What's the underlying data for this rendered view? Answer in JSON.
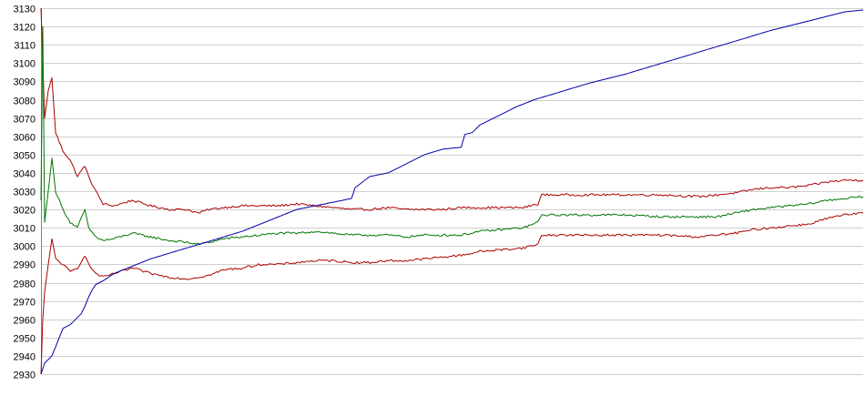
{
  "chart_data": {
    "type": "line",
    "title": "",
    "xlabel": "",
    "ylabel": "",
    "grid": "horizontal",
    "legend": "none",
    "ylim": [
      2930,
      3130
    ],
    "yticks": [
      "3130",
      "3120",
      "3110",
      "3100",
      "3090",
      "3080",
      "3070",
      "3060",
      "3050",
      "3040",
      "3030",
      "3020",
      "3010",
      "3000",
      "2990",
      "2980",
      "2970",
      "2960",
      "2950",
      "2940",
      "2930"
    ],
    "xlim": [
      0,
      225
    ],
    "series": [
      {
        "role": "upper",
        "color": "#aa0000",
        "points": [
          [
            0,
            3130
          ],
          [
            1,
            3070
          ],
          [
            2,
            3085
          ],
          [
            3,
            3092
          ],
          [
            4,
            3062
          ],
          [
            6,
            3052
          ],
          [
            8,
            3047
          ],
          [
            10,
            3038
          ],
          [
            12,
            3044
          ],
          [
            13,
            3038
          ],
          [
            15,
            3030
          ],
          [
            17,
            3023
          ],
          [
            20,
            3022
          ],
          [
            25,
            3025
          ],
          [
            30,
            3022
          ],
          [
            35,
            3020
          ],
          [
            40,
            3020
          ],
          [
            43,
            3018
          ],
          [
            46,
            3020
          ],
          [
            50,
            3021
          ],
          [
            55,
            3022
          ],
          [
            60,
            3022
          ],
          [
            65,
            3022
          ],
          [
            70,
            3023
          ],
          [
            75,
            3022
          ],
          [
            80,
            3021
          ],
          [
            85,
            3020
          ],
          [
            90,
            3020
          ],
          [
            95,
            3021
          ],
          [
            100,
            3020
          ],
          [
            105,
            3020
          ],
          [
            110,
            3020
          ],
          [
            115,
            3021
          ],
          [
            120,
            3021
          ],
          [
            132,
            3021
          ],
          [
            136,
            3023
          ],
          [
            137,
            3028
          ],
          [
            140,
            3028
          ],
          [
            150,
            3028
          ],
          [
            160,
            3028
          ],
          [
            170,
            3028
          ],
          [
            180,
            3027
          ],
          [
            185,
            3028
          ],
          [
            190,
            3029
          ],
          [
            195,
            3031
          ],
          [
            200,
            3032
          ],
          [
            205,
            3032
          ],
          [
            210,
            3033
          ],
          [
            215,
            3035
          ],
          [
            220,
            3036
          ],
          [
            225,
            3036
          ]
        ]
      },
      {
        "role": "middle",
        "color": "#007700",
        "points": [
          [
            0,
            3025
          ],
          [
            0.5,
            3120
          ],
          [
            1,
            3013
          ],
          [
            2,
            3030
          ],
          [
            3,
            3048
          ],
          [
            4,
            3030
          ],
          [
            6,
            3020
          ],
          [
            8,
            3013
          ],
          [
            10,
            3010
          ],
          [
            12,
            3020
          ],
          [
            13,
            3010
          ],
          [
            15,
            3005
          ],
          [
            17,
            3003
          ],
          [
            20,
            3004
          ],
          [
            25,
            3007
          ],
          [
            30,
            3005
          ],
          [
            35,
            3003
          ],
          [
            40,
            3002
          ],
          [
            43,
            3001
          ],
          [
            46,
            3002
          ],
          [
            50,
            3004
          ],
          [
            55,
            3005
          ],
          [
            60,
            3006
          ],
          [
            65,
            3007
          ],
          [
            70,
            3007
          ],
          [
            75,
            3008
          ],
          [
            80,
            3007
          ],
          [
            85,
            3006
          ],
          [
            90,
            3006
          ],
          [
            95,
            3006
          ],
          [
            100,
            3005
          ],
          [
            105,
            3006
          ],
          [
            110,
            3006
          ],
          [
            115,
            3006
          ],
          [
            120,
            3008
          ],
          [
            132,
            3010
          ],
          [
            136,
            3013
          ],
          [
            137,
            3017
          ],
          [
            140,
            3017
          ],
          [
            150,
            3017
          ],
          [
            160,
            3017
          ],
          [
            170,
            3016
          ],
          [
            180,
            3016
          ],
          [
            185,
            3016
          ],
          [
            190,
            3018
          ],
          [
            195,
            3020
          ],
          [
            200,
            3021
          ],
          [
            205,
            3022
          ],
          [
            210,
            3023
          ],
          [
            215,
            3025
          ],
          [
            220,
            3026
          ],
          [
            225,
            3027
          ]
        ]
      },
      {
        "role": "lower",
        "color": "#aa0000",
        "points": [
          [
            0,
            2930
          ],
          [
            0.5,
            2960
          ],
          [
            1,
            2975
          ],
          [
            2,
            2990
          ],
          [
            3,
            3004
          ],
          [
            4,
            2993
          ],
          [
            6,
            2990
          ],
          [
            8,
            2986
          ],
          [
            10,
            2988
          ],
          [
            12,
            2995
          ],
          [
            13,
            2990
          ],
          [
            15,
            2985
          ],
          [
            17,
            2983
          ],
          [
            20,
            2985
          ],
          [
            25,
            2988
          ],
          [
            30,
            2985
          ],
          [
            35,
            2983
          ],
          [
            40,
            2982
          ],
          [
            43,
            2983
          ],
          [
            46,
            2984
          ],
          [
            50,
            2987
          ],
          [
            55,
            2988
          ],
          [
            60,
            2990
          ],
          [
            65,
            2990
          ],
          [
            70,
            2991
          ],
          [
            75,
            2992
          ],
          [
            80,
            2992
          ],
          [
            85,
            2991
          ],
          [
            90,
            2991
          ],
          [
            95,
            2992
          ],
          [
            100,
            2992
          ],
          [
            105,
            2993
          ],
          [
            110,
            2994
          ],
          [
            115,
            2995
          ],
          [
            120,
            2997
          ],
          [
            132,
            2999
          ],
          [
            136,
            3001
          ],
          [
            137,
            3006
          ],
          [
            140,
            3006
          ],
          [
            150,
            3006
          ],
          [
            160,
            3006
          ],
          [
            170,
            3006
          ],
          [
            180,
            3005
          ],
          [
            185,
            3006
          ],
          [
            190,
            3007
          ],
          [
            195,
            3009
          ],
          [
            200,
            3010
          ],
          [
            205,
            3011
          ],
          [
            210,
            3012
          ],
          [
            215,
            3015
          ],
          [
            220,
            3017
          ],
          [
            225,
            3018
          ]
        ]
      },
      {
        "role": "cumulative",
        "color": "#0000aa",
        "points": [
          [
            0,
            2930
          ],
          [
            1,
            2936
          ],
          [
            2,
            2938
          ],
          [
            3,
            2940
          ],
          [
            4,
            2945
          ],
          [
            5,
            2950
          ],
          [
            6,
            2955
          ],
          [
            8,
            2957
          ],
          [
            10,
            2961
          ],
          [
            11,
            2963
          ],
          [
            12,
            2967
          ],
          [
            13,
            2972
          ],
          [
            14,
            2976
          ],
          [
            15,
            2979
          ],
          [
            17,
            2981
          ],
          [
            20,
            2985
          ],
          [
            25,
            2989
          ],
          [
            30,
            2993
          ],
          [
            35,
            2996
          ],
          [
            40,
            2999
          ],
          [
            45,
            3002
          ],
          [
            50,
            3005
          ],
          [
            55,
            3008
          ],
          [
            60,
            3012
          ],
          [
            65,
            3016
          ],
          [
            70,
            3020
          ],
          [
            75,
            3022
          ],
          [
            80,
            3024
          ],
          [
            85,
            3026
          ],
          [
            86,
            3032
          ],
          [
            88,
            3035
          ],
          [
            90,
            3038
          ],
          [
            95,
            3040
          ],
          [
            100,
            3045
          ],
          [
            105,
            3050
          ],
          [
            110,
            3053
          ],
          [
            115,
            3054
          ],
          [
            116,
            3061
          ],
          [
            118,
            3062
          ],
          [
            120,
            3066
          ],
          [
            125,
            3071
          ],
          [
            130,
            3076
          ],
          [
            135,
            3080
          ],
          [
            140,
            3083
          ],
          [
            150,
            3089
          ],
          [
            160,
            3094
          ],
          [
            170,
            3100
          ],
          [
            180,
            3106
          ],
          [
            190,
            3112
          ],
          [
            200,
            3118
          ],
          [
            210,
            3123
          ],
          [
            220,
            3128
          ],
          [
            225,
            3129
          ]
        ]
      }
    ]
  }
}
